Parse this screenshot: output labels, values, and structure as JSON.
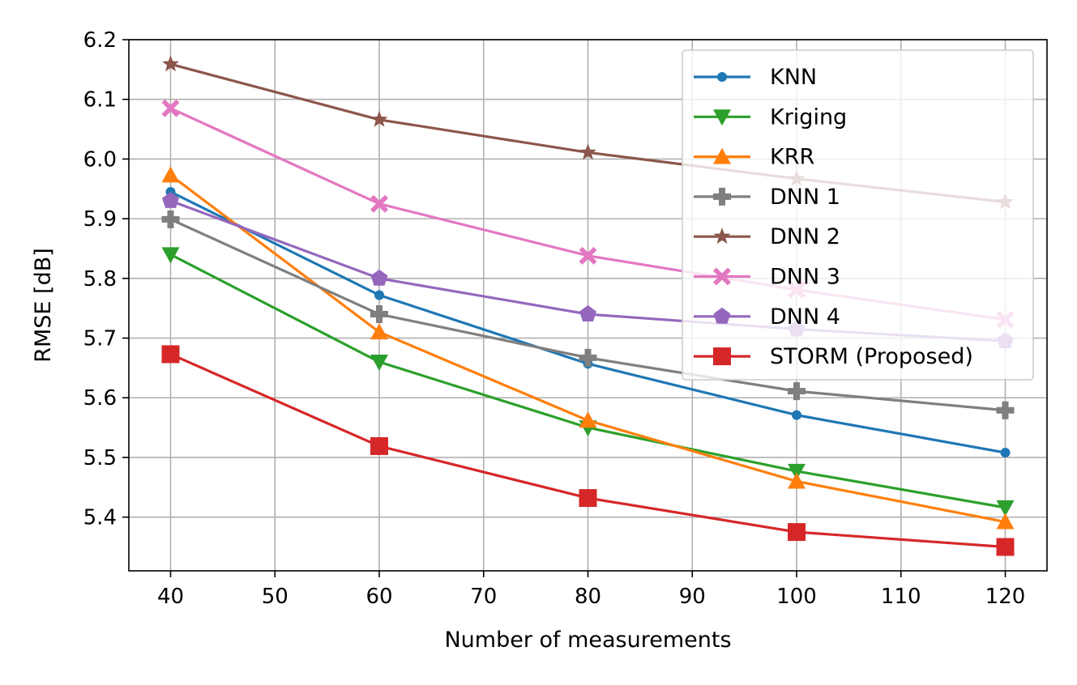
{
  "chart_data": {
    "type": "line",
    "title": "",
    "xlabel": "Number of measurements",
    "ylabel": "RMSE [dB]",
    "xlim": [
      36,
      124
    ],
    "ylim": [
      5.31,
      6.2
    ],
    "xticks": [
      40,
      50,
      60,
      70,
      80,
      90,
      100,
      110,
      120
    ],
    "yticks": [
      5.4,
      5.5,
      5.6,
      5.7,
      5.8,
      5.9,
      6.0,
      6.1,
      6.2
    ],
    "grid": true,
    "legend_position": "top-right",
    "x": [
      40,
      60,
      80,
      100,
      120
    ],
    "series": [
      {
        "name": "KNN",
        "color": "#1f77b4",
        "marker": "circle",
        "values": [
          5.945,
          5.772,
          5.657,
          5.571,
          5.508
        ]
      },
      {
        "name": "Kriging",
        "color": "#2ca02c",
        "marker": "triangle-down",
        "values": [
          5.84,
          5.66,
          5.55,
          5.477,
          5.416
        ]
      },
      {
        "name": "KRR",
        "color": "#ff7f0e",
        "marker": "triangle-up",
        "values": [
          5.973,
          5.71,
          5.562,
          5.46,
          5.392
        ]
      },
      {
        "name": "DNN 1",
        "color": "#7f7f7f",
        "marker": "plus",
        "values": [
          5.899,
          5.74,
          5.667,
          5.611,
          5.579
        ]
      },
      {
        "name": "DNN 2",
        "color": "#8c564b",
        "marker": "star",
        "values": [
          6.159,
          6.066,
          6.011,
          5.967,
          5.928
        ]
      },
      {
        "name": "DNN 3",
        "color": "#e377c2",
        "marker": "x",
        "values": [
          6.085,
          5.925,
          5.838,
          5.781,
          5.731
        ]
      },
      {
        "name": "DNN 4",
        "color": "#9467bd",
        "marker": "pentagon",
        "values": [
          5.93,
          5.8,
          5.74,
          5.715,
          5.695
        ]
      },
      {
        "name": "STORM (Proposed)",
        "color": "#d62728",
        "marker": "square",
        "values": [
          5.673,
          5.519,
          5.432,
          5.375,
          5.35
        ]
      }
    ]
  }
}
